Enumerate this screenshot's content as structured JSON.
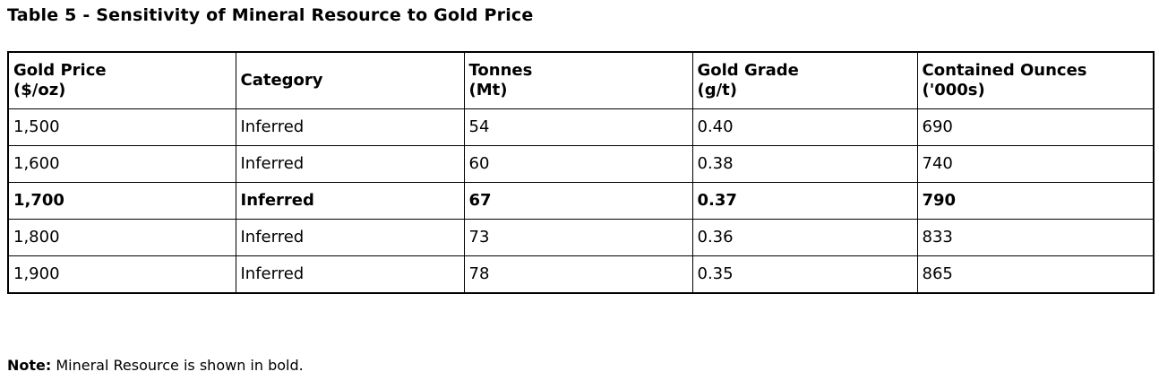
{
  "title": "Table 5 - Sensitivity of Mineral Resource to Gold Price",
  "table": {
    "headers": [
      "Gold Price\n($/oz)",
      "Category",
      "Tonnes\n(Mt)",
      "Gold Grade\n(g/t)",
      "Contained Ounces\n('000s)"
    ],
    "rows": [
      {
        "bold": false,
        "cells": [
          "1,500",
          "Inferred",
          "54",
          "0.40",
          "690"
        ]
      },
      {
        "bold": false,
        "cells": [
          "1,600",
          "Inferred",
          "60",
          "0.38",
          "740"
        ]
      },
      {
        "bold": true,
        "cells": [
          "1,700",
          "Inferred",
          "67",
          "0.37",
          "790"
        ]
      },
      {
        "bold": false,
        "cells": [
          "1,800",
          "Inferred",
          "73",
          "0.36",
          "833"
        ]
      },
      {
        "bold": false,
        "cells": [
          "1,900",
          "Inferred",
          "78",
          "0.35",
          "865"
        ]
      }
    ]
  },
  "note": {
    "label": "Note:",
    "text": " Mineral Resource is shown in bold."
  },
  "colors": {
    "text": "#000000",
    "background": "#ffffff",
    "border": "#000000"
  }
}
